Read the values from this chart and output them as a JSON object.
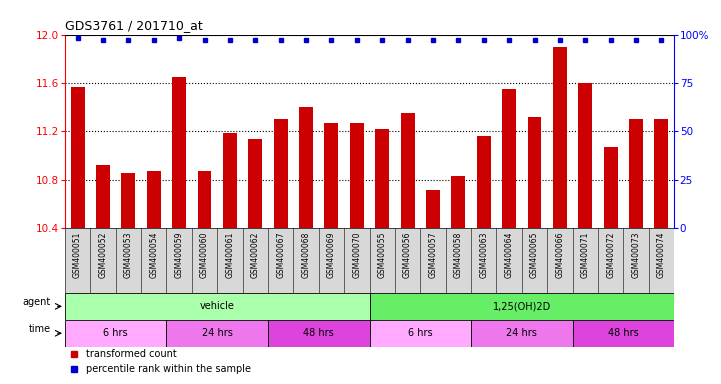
{
  "title": "GDS3761 / 201710_at",
  "samples": [
    "GSM400051",
    "GSM400052",
    "GSM400053",
    "GSM400054",
    "GSM400059",
    "GSM400060",
    "GSM400061",
    "GSM400062",
    "GSM400067",
    "GSM400068",
    "GSM400069",
    "GSM400070",
    "GSM400055",
    "GSM400056",
    "GSM400057",
    "GSM400058",
    "GSM400063",
    "GSM400064",
    "GSM400065",
    "GSM400066",
    "GSM400071",
    "GSM400072",
    "GSM400073",
    "GSM400074"
  ],
  "bar_values": [
    11.57,
    10.92,
    10.86,
    10.87,
    11.65,
    10.87,
    11.19,
    11.14,
    11.3,
    11.4,
    11.27,
    11.27,
    11.22,
    11.35,
    10.72,
    10.83,
    11.16,
    11.55,
    11.32,
    11.9,
    11.6,
    11.07,
    11.3,
    11.3
  ],
  "percentile_values": [
    98,
    97,
    97,
    97,
    98,
    97,
    97,
    97,
    97,
    97,
    97,
    97,
    97,
    97,
    97,
    97,
    97,
    97,
    97,
    97,
    97,
    97,
    97,
    97
  ],
  "bar_color": "#cc0000",
  "dot_color": "#0000cc",
  "ylim_left": [
    10.4,
    12.0
  ],
  "ylim_right": [
    0,
    100
  ],
  "yticks_left": [
    10.4,
    10.8,
    11.2,
    11.6,
    12.0
  ],
  "yticks_right": [
    0,
    25,
    50,
    75,
    100
  ],
  "ytick_labels_right": [
    "0",
    "25",
    "50",
    "75",
    "100%"
  ],
  "dotted_lines": [
    10.8,
    11.2,
    11.6
  ],
  "agent_row": [
    {
      "label": "vehicle",
      "start": 0,
      "end": 12,
      "color": "#aaffaa"
    },
    {
      "label": "1,25(OH)2D",
      "start": 12,
      "end": 24,
      "color": "#66ee66"
    }
  ],
  "time_row": [
    {
      "label": "6 hrs",
      "start": 0,
      "end": 4,
      "color": "#ffaaff"
    },
    {
      "label": "24 hrs",
      "start": 4,
      "end": 8,
      "color": "#ee77ee"
    },
    {
      "label": "48 hrs",
      "start": 8,
      "end": 12,
      "color": "#dd44dd"
    },
    {
      "label": "6 hrs",
      "start": 12,
      "end": 16,
      "color": "#ffaaff"
    },
    {
      "label": "24 hrs",
      "start": 16,
      "end": 20,
      "color": "#ee77ee"
    },
    {
      "label": "48 hrs",
      "start": 20,
      "end": 24,
      "color": "#dd44dd"
    }
  ],
  "legend_items": [
    {
      "label": "transformed count",
      "color": "#cc0000"
    },
    {
      "label": "percentile rank within the sample",
      "color": "#0000cc"
    }
  ],
  "background_color": "#ffffff",
  "xticklabel_bg": "#d8d8d8"
}
